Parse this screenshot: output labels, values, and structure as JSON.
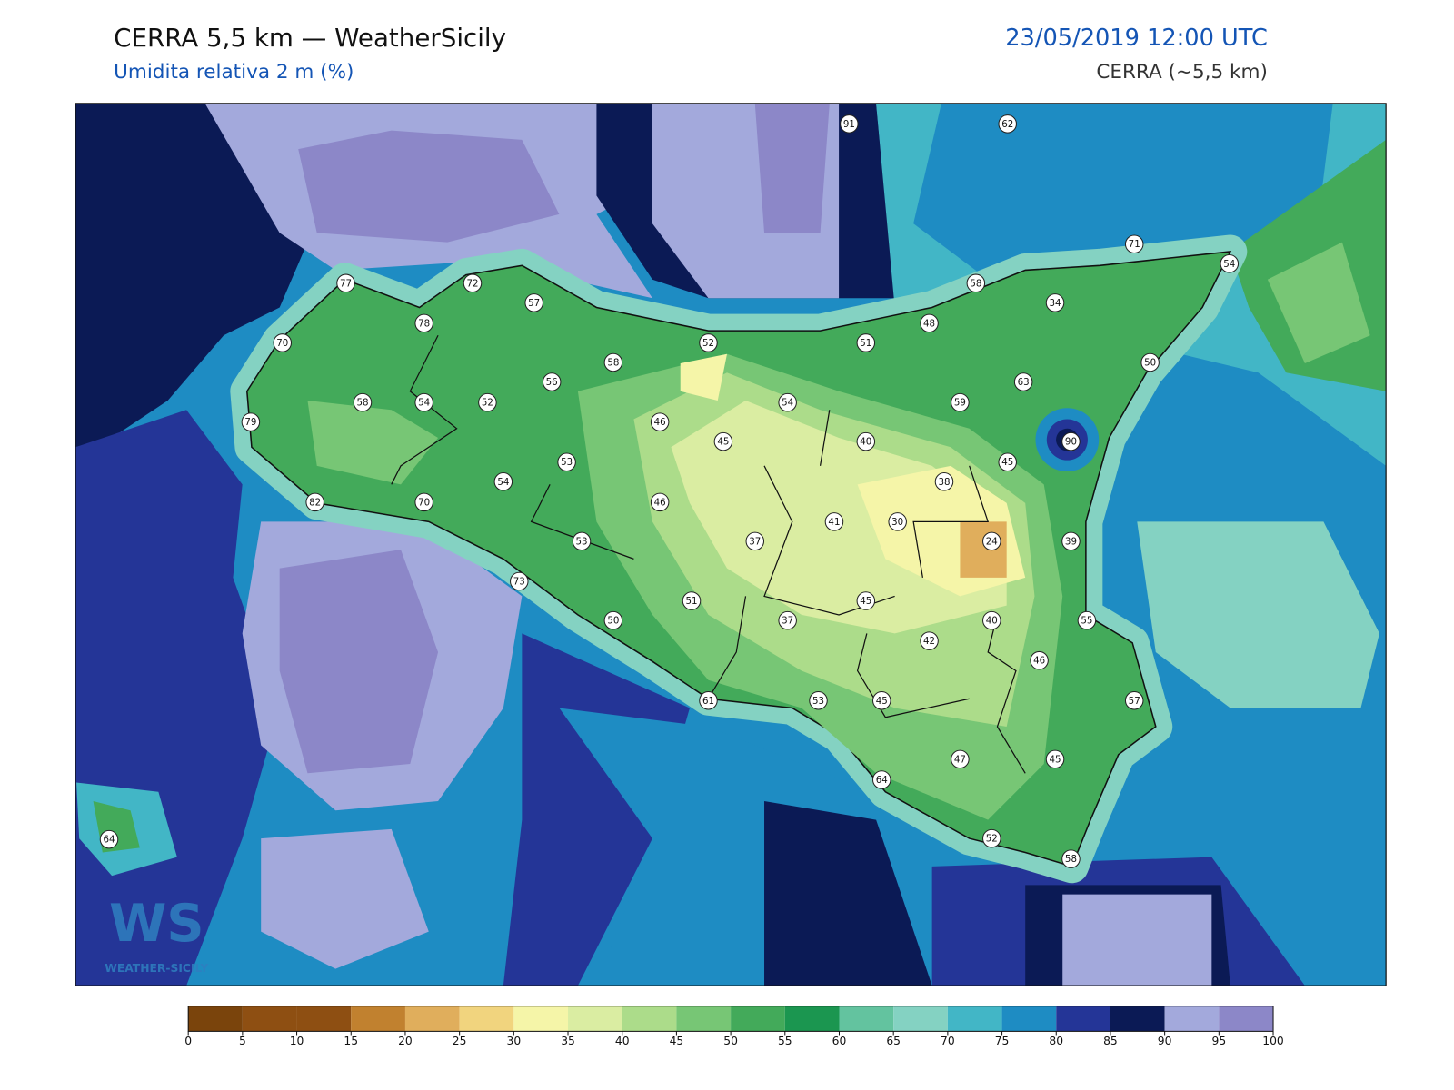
{
  "header": {
    "title": "CERRA 5,5 km — WeatherSicily",
    "subtitle": "Umidita relativa 2 m (%)",
    "datetime": "23/05/2019 12:00 UTC",
    "model": "CERRA (~5,5 km)"
  },
  "map": {
    "stations": [
      91,
      62,
      71,
      54,
      77,
      72,
      58,
      57,
      34,
      78,
      48,
      70,
      52,
      51,
      58,
      50,
      56,
      63,
      58,
      54,
      52,
      54,
      59,
      79,
      46,
      45,
      40,
      90,
      53,
      45,
      54,
      38,
      82,
      70,
      46,
      30,
      41,
      37,
      53,
      24,
      39,
      73,
      51,
      45,
      50,
      37,
      40,
      55,
      42,
      46,
      61,
      53,
      45,
      57,
      47,
      45,
      64,
      52,
      58,
      64
    ]
  },
  "logo": {
    "mark": "WS",
    "name": "WEATHER-SICILY"
  },
  "colorbar": {
    "ticks": [
      0,
      5,
      10,
      15,
      20,
      25,
      30,
      35,
      40,
      45,
      50,
      55,
      60,
      65,
      70,
      75,
      80,
      85,
      90,
      95,
      100
    ],
    "colors": [
      "#7a440c",
      "#8e4f12",
      "#8e4f12",
      "#c1812f",
      "#e0ae5c",
      "#f1d47e",
      "#f5f5a8",
      "#daeda2",
      "#acdc8a",
      "#77c675",
      "#43aa5a",
      "#1b9650",
      "#63c39f",
      "#84d2c2",
      "#42b6c6",
      "#1e8cc3",
      "#243597",
      "#0b1a55",
      "#a3a9dc",
      "#8c87c8"
    ]
  }
}
